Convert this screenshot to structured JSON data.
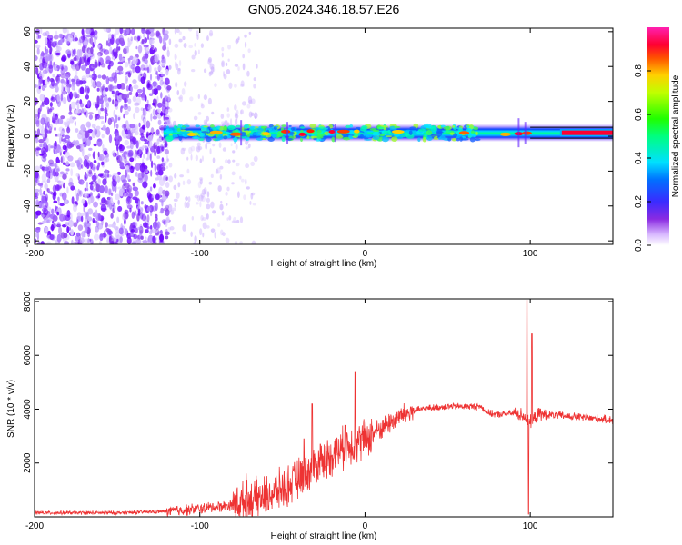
{
  "figure": {
    "title": "GN05.2024.346.18.57.E26"
  },
  "chart_data": [
    {
      "type": "heatmap",
      "panel": "top",
      "xlabel": "Height of straight line (km)",
      "ylabel": "Frequency (Hz)",
      "xlim": [
        -200,
        150
      ],
      "ylim": [
        -62,
        62
      ],
      "xticks": [
        "-200",
        "-100",
        "0",
        "100"
      ],
      "yticks": [
        "-60",
        "-40",
        "-20",
        "0",
        "20",
        "40",
        "60"
      ],
      "colorbar": {
        "label": "Normalized spectral amplitude",
        "range": [
          0.0,
          1.0
        ],
        "ticks": [
          "0.0",
          "0.2",
          "0.4",
          "0.6",
          "0.8"
        ],
        "colormap": "rainbow (magenta-purple-blue-cyan-green-yellow-red-magenta)"
      },
      "features": [
        {
          "x_range": [
            -200,
            -120
          ],
          "y_range": [
            -60,
            60
          ],
          "amplitude": 0.05,
          "desc": "scattered low-amplitude noise"
        },
        {
          "x_range": [
            -120,
            -65
          ],
          "y_range": [
            -60,
            60
          ],
          "amplitude": 0.02,
          "desc": "sparse faint noise"
        },
        {
          "x_range": [
            -120,
            150
          ],
          "y_center": 2,
          "amplitude": 0.4,
          "desc": "band near 0 Hz"
        },
        {
          "x_range": [
            118,
            150
          ],
          "y_center": 2,
          "amplitude": 0.95,
          "desc": "strong narrow line"
        }
      ]
    },
    {
      "type": "line",
      "panel": "bottom",
      "xlabel": "Height of straight line (km)",
      "ylabel": "SNR (10 * v/v)",
      "xlim": [
        -200,
        150
      ],
      "ylim": [
        0,
        8100
      ],
      "xticks": [
        "-200",
        "-100",
        "0",
        "100"
      ],
      "yticks": [
        "2000",
        "4000",
        "6000",
        "8000"
      ],
      "color": "#ee3333",
      "envelope": {
        "x": [
          -200,
          -150,
          -120,
          -100,
          -80,
          -60,
          -45,
          -30,
          -15,
          0,
          10,
          20,
          30,
          40,
          50,
          60,
          70,
          75,
          80,
          90,
          95,
          100,
          105,
          110,
          120,
          130,
          140,
          150
        ],
        "y": [
          150,
          150,
          200,
          300,
          450,
          750,
          1200,
          1900,
          2500,
          2900,
          3300,
          3700,
          3950,
          4050,
          4100,
          4100,
          4100,
          3850,
          3800,
          3850,
          3800,
          3500,
          3800,
          3800,
          3750,
          3700,
          3650,
          3600
        ]
      },
      "spikes": [
        {
          "x": -72,
          "y": 1600
        },
        {
          "x": -37,
          "y": 2900
        },
        {
          "x": -32,
          "y": 4200
        },
        {
          "x": -27,
          "y": 2700
        },
        {
          "x": -12,
          "y": 3400
        },
        {
          "x": -6,
          "y": 5400
        },
        {
          "x": 98,
          "y": 8050
        },
        {
          "x": 99,
          "y": 100
        },
        {
          "x": 101,
          "y": 6800
        }
      ]
    }
  ]
}
